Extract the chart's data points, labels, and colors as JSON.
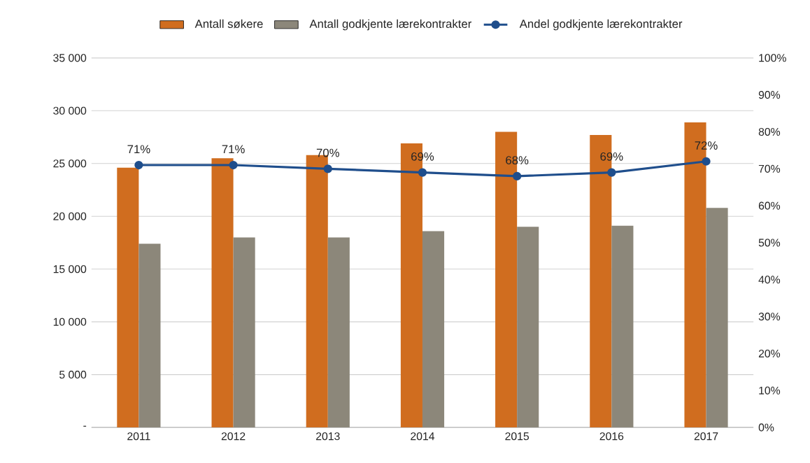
{
  "chart_data": {
    "type": "bar",
    "categories": [
      "2011",
      "2012",
      "2013",
      "2014",
      "2015",
      "2016",
      "2017"
    ],
    "series": [
      {
        "name": "Antall søkere",
        "color": "#d06d1f",
        "values": [
          24600,
          25500,
          25800,
          26900,
          28000,
          27700,
          28900
        ]
      },
      {
        "name": "Antall godkjente lærekontrakter",
        "color": "#8c877a",
        "values": [
          17400,
          18000,
          18000,
          18600,
          19000,
          19100,
          20800
        ]
      },
      {
        "name": "Andel godkjente lærekontrakter",
        "type": "line",
        "axis": "y2",
        "color": "#1f4e8c",
        "marker": "circle",
        "values": [
          71,
          71,
          70,
          69,
          68,
          69,
          72
        ],
        "value_labels": [
          "71%",
          "71%",
          "70%",
          "69%",
          "68%",
          "69%",
          "72%"
        ]
      }
    ],
    "ylim": [
      0,
      35000
    ],
    "yticks": [
      {
        "value": 0,
        "label": "-"
      },
      {
        "value": 5000,
        "label": "5 000"
      },
      {
        "value": 10000,
        "label": "10 000"
      },
      {
        "value": 15000,
        "label": "15 000"
      },
      {
        "value": 20000,
        "label": "20 000"
      },
      {
        "value": 25000,
        "label": "25 000"
      },
      {
        "value": 30000,
        "label": "30 000"
      },
      {
        "value": 35000,
        "label": "35 000"
      }
    ],
    "y2lim": [
      0,
      100
    ],
    "y2ticks": [
      {
        "value": 0,
        "label": "0%"
      },
      {
        "value": 10,
        "label": "10%"
      },
      {
        "value": 20,
        "label": "20%"
      },
      {
        "value": 30,
        "label": "30%"
      },
      {
        "value": 40,
        "label": "40%"
      },
      {
        "value": 50,
        "label": "50%"
      },
      {
        "value": 60,
        "label": "60%"
      },
      {
        "value": 70,
        "label": "70%"
      },
      {
        "value": 80,
        "label": "80%"
      },
      {
        "value": 90,
        "label": "90%"
      },
      {
        "value": 100,
        "label": "100%"
      }
    ],
    "grid": "y",
    "legend": "top"
  }
}
